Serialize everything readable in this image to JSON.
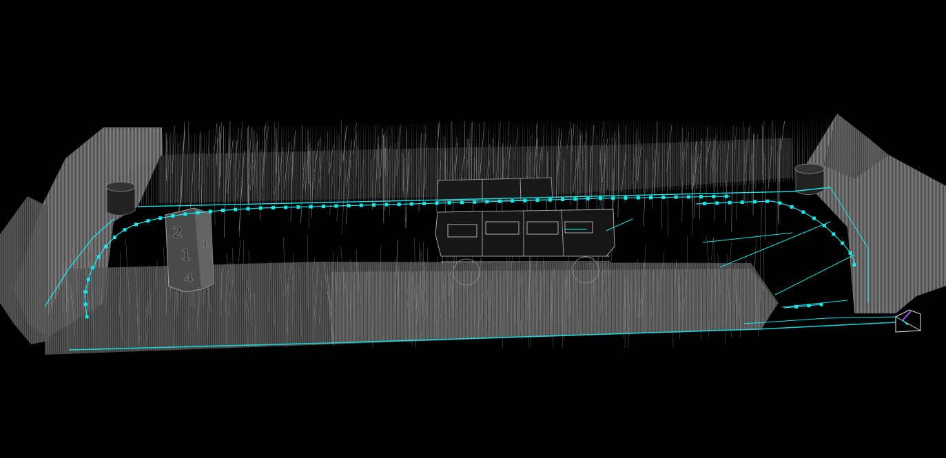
{
  "viewer": {
    "background": "#000000",
    "trajectory_color": "#19e6ea",
    "pointcloud_color": "#8c8c8c",
    "camera_color": "#ffffff",
    "axis_color": "#b44cff"
  },
  "scene": {
    "sign_digits": [
      "2",
      "1",
      "4"
    ],
    "keyframe_count": 74
  }
}
